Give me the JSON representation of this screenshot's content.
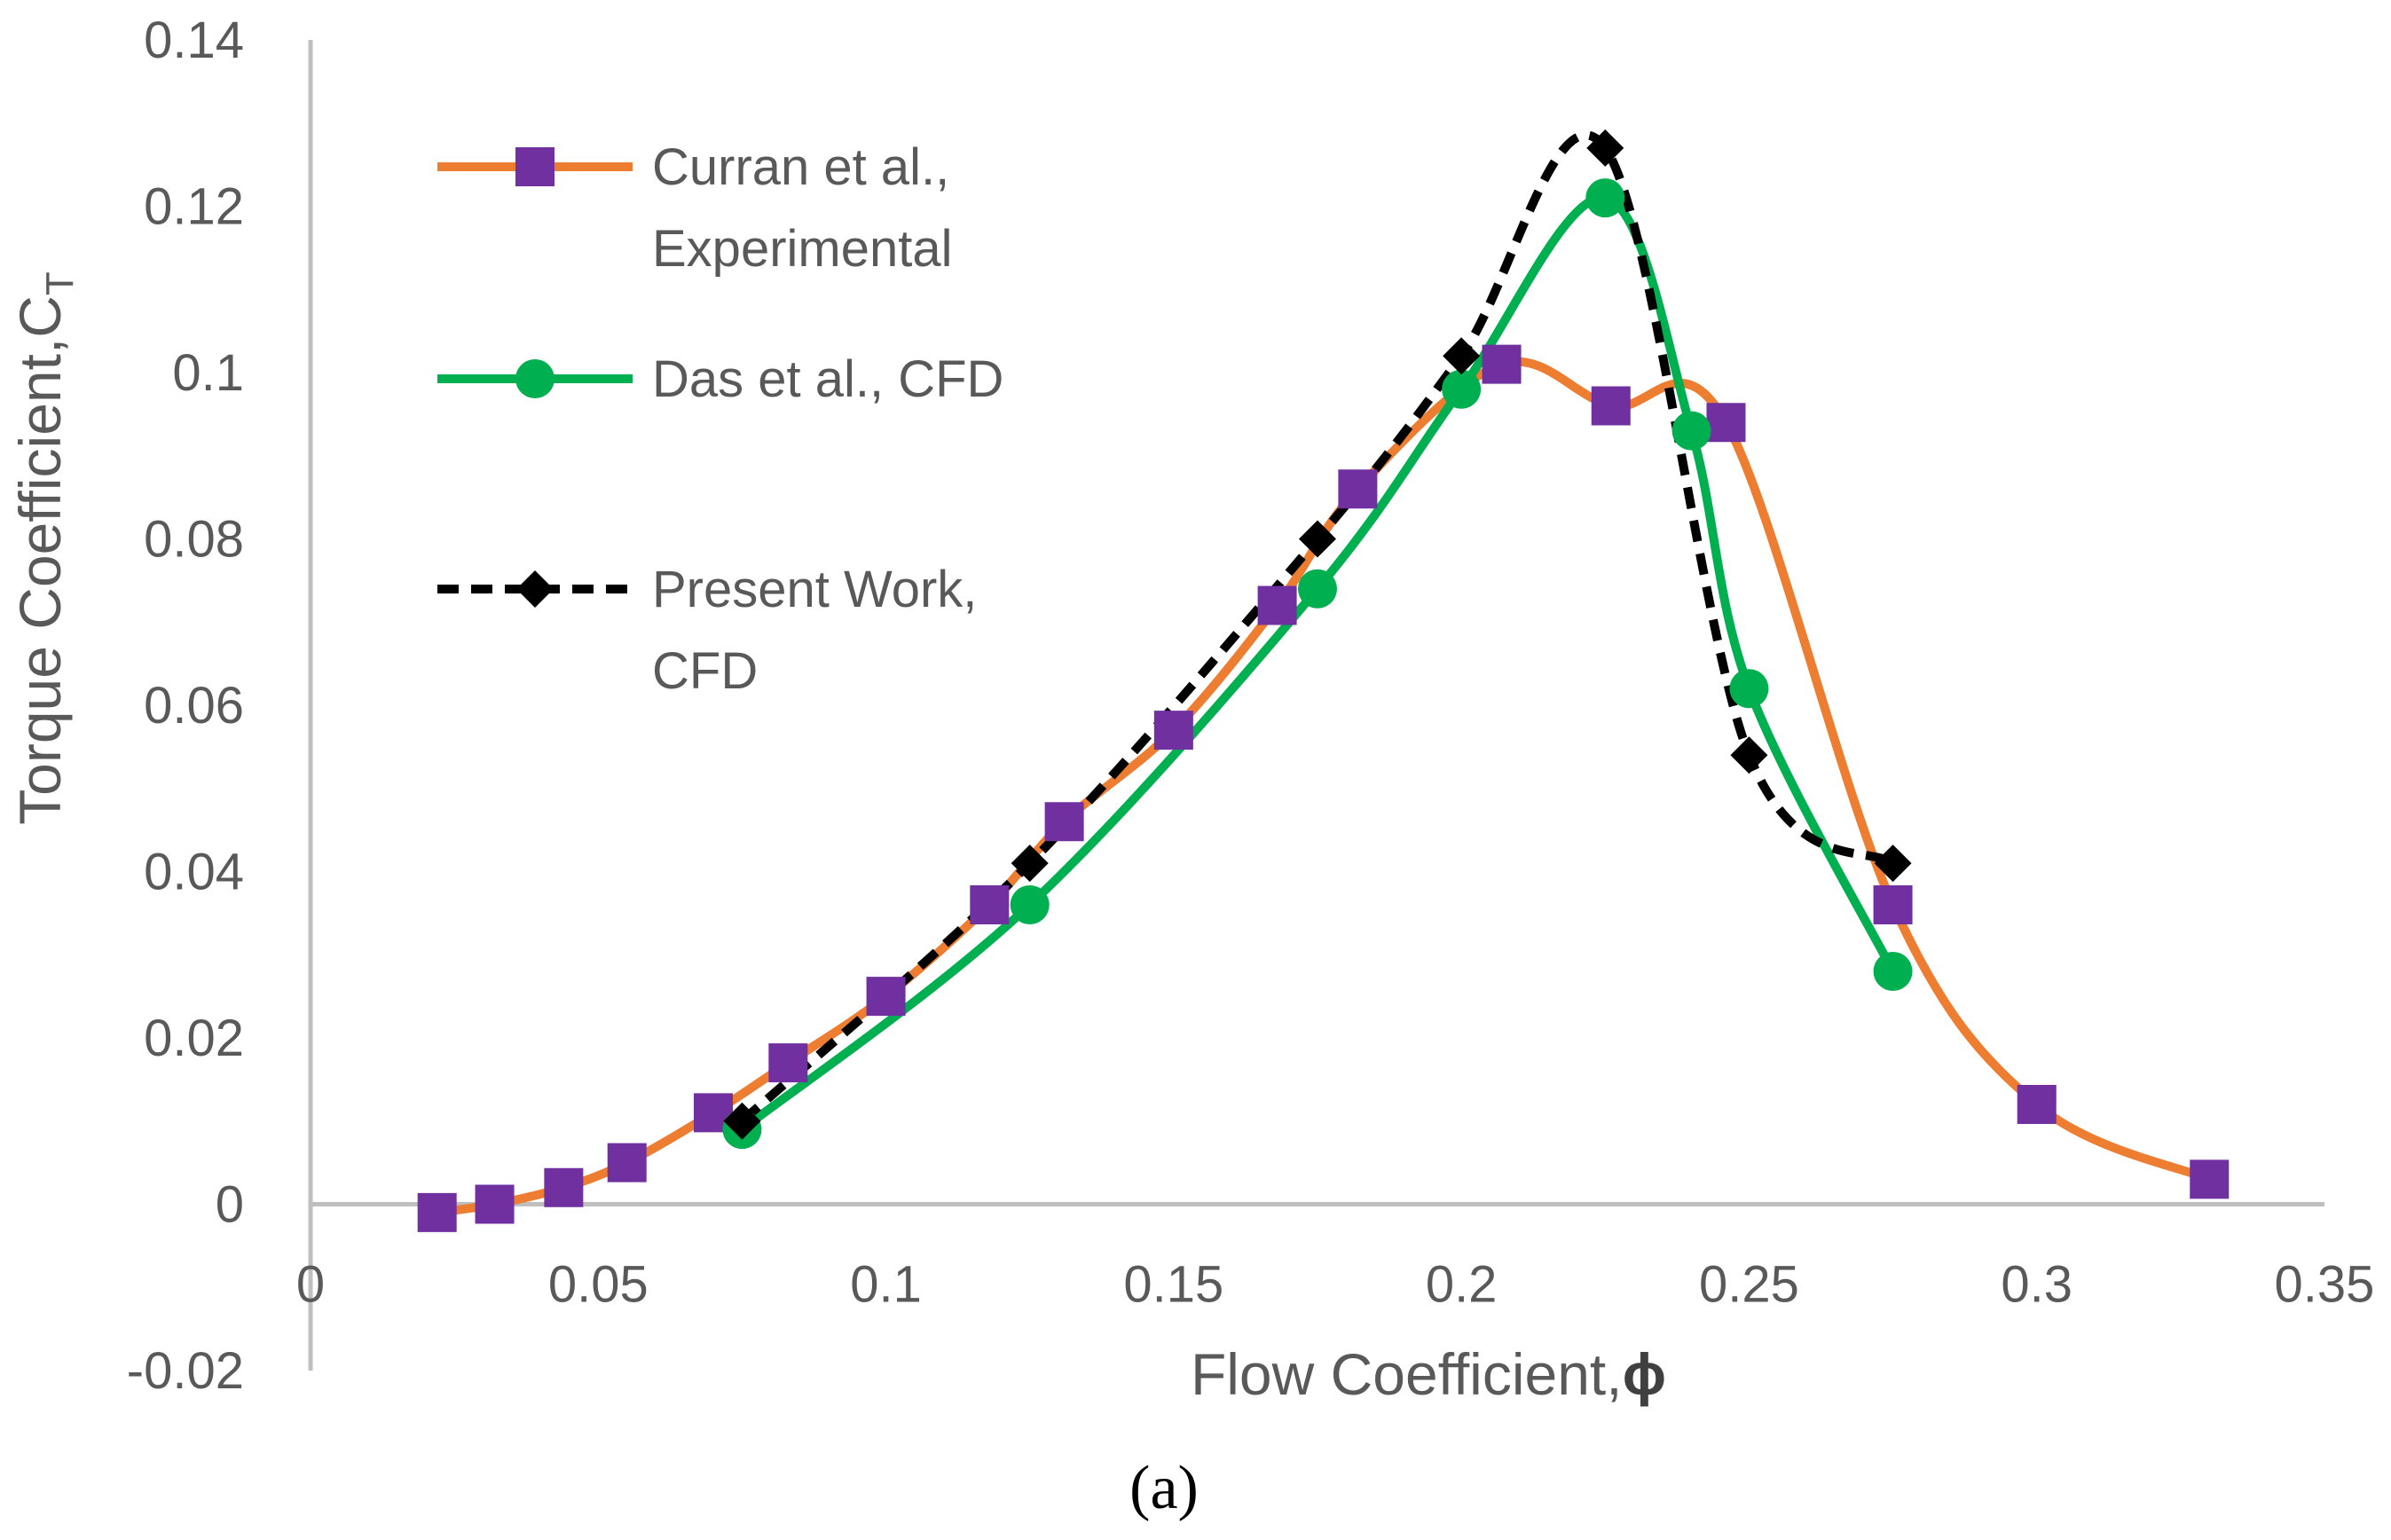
{
  "chart_data": {
    "type": "line",
    "title": "",
    "xlabel": "Flow Coefficient,",
    "xlabel_symbol": "ϕ",
    "ylabel": "Torque Coefficient,C",
    "ylabel_subscript": "T",
    "panel_label": "(a)",
    "xlim": [
      0,
      0.35
    ],
    "ylim": [
      -0.02,
      0.14
    ],
    "x_ticks": [
      "0",
      "0.05",
      "0.1",
      "0.15",
      "0.2",
      "0.25",
      "0.3",
      "0.35"
    ],
    "y_ticks": [
      "-0.02",
      "0",
      "0.02",
      "0.04",
      "0.06",
      "0.08",
      "0.1",
      "0.12",
      "0.14"
    ],
    "legend_position": "top-left",
    "series": [
      {
        "name": "Curran et al., Experimental",
        "legend_lines": [
          "Curran et al.,",
          "Experimental"
        ],
        "line_color": "#ED7D31",
        "marker_color": "#7030A0",
        "marker": "square",
        "dash": "solid",
        "x": [
          0.022,
          0.032,
          0.044,
          0.055,
          0.07,
          0.083,
          0.1,
          0.118,
          0.131,
          0.15,
          0.168,
          0.182,
          0.207,
          0.226,
          0.246,
          0.275,
          0.3,
          0.33
        ],
        "y": [
          -0.001,
          0.0,
          0.002,
          0.005,
          0.011,
          0.017,
          0.025,
          0.036,
          0.046,
          0.057,
          0.072,
          0.086,
          0.101,
          0.096,
          0.094,
          0.036,
          0.012,
          0.003
        ]
      },
      {
        "name": "Das et al., CFD",
        "legend_lines": [
          "Das et al., CFD"
        ],
        "line_color": "#00B050",
        "marker_color": "#00B050",
        "marker": "circle",
        "dash": "solid",
        "x": [
          0.075,
          0.125,
          0.175,
          0.2,
          0.225,
          0.24,
          0.25,
          0.275
        ],
        "y": [
          0.009,
          0.036,
          0.074,
          0.098,
          0.121,
          0.093,
          0.062,
          0.028
        ]
      },
      {
        "name": "Present Work, CFD",
        "legend_lines": [
          "Present Work,",
          "CFD"
        ],
        "line_color": "#000000",
        "marker_color": "#000000",
        "marker": "diamond",
        "dash": "dashed",
        "x": [
          0.075,
          0.125,
          0.175,
          0.2,
          0.225,
          0.25,
          0.275
        ],
        "y": [
          0.01,
          0.041,
          0.08,
          0.102,
          0.127,
          0.054,
          0.041
        ]
      }
    ]
  }
}
